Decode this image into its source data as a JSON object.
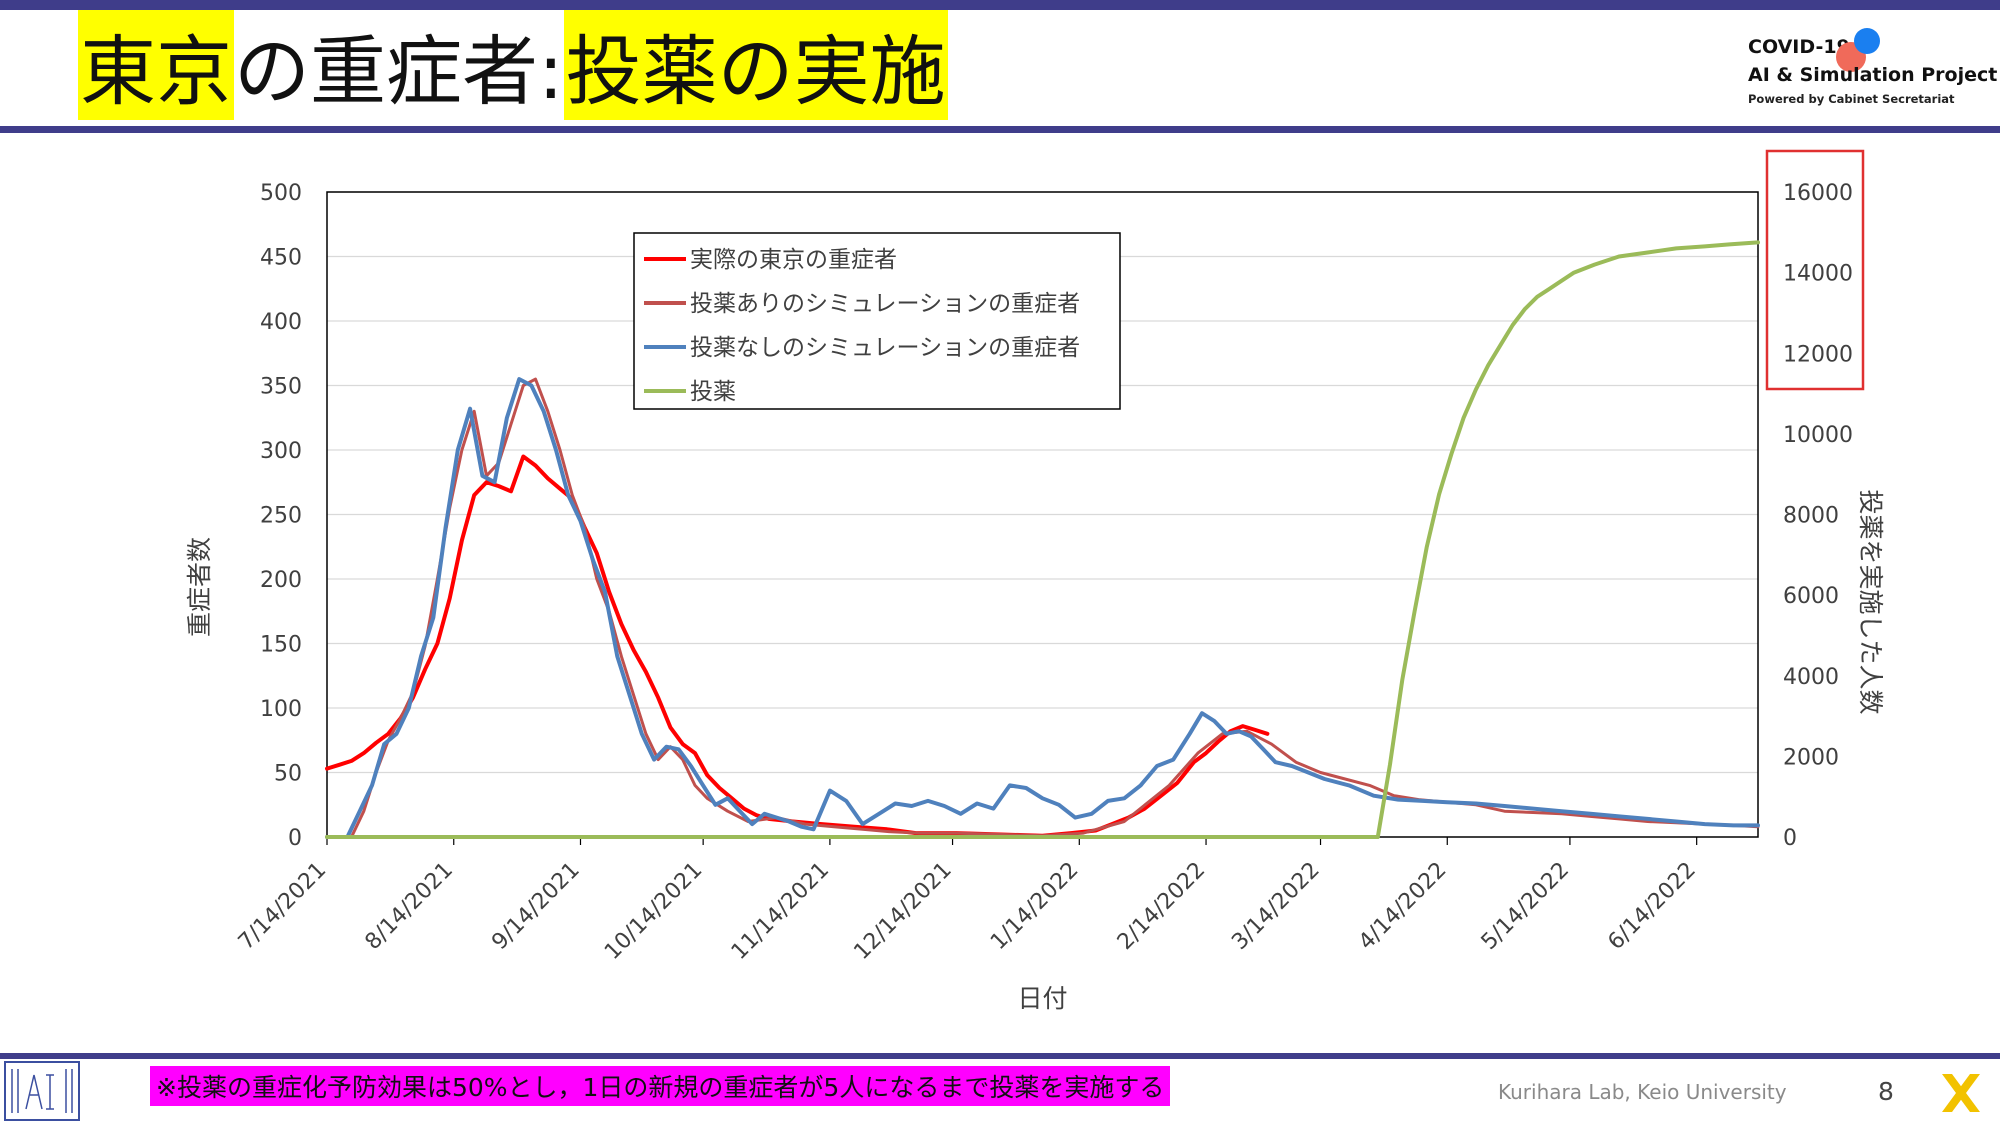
{
  "slide": {
    "title_part1": "東京",
    "title_part2": "の重症者:",
    "title_part3": "投薬の実施",
    "logo_line1": "COVID-19",
    "logo_line2": "AI & Simulation Project",
    "logo_line3": "Powered by Cabinet Secretariat",
    "footnote": "※投薬の重症化予防効果は50%とし，1日の新規の重症者が5人になるまで投薬を実施する",
    "credit": "Kurihara Lab, Keio University",
    "page_number": "8"
  },
  "colors": {
    "title_highlight": "#ffff00",
    "footnote_highlight": "#ff00ff",
    "accent_bar": "#3f3d8a",
    "actual": "#ff0000",
    "sim_with_drug": "#c0504d",
    "sim_without_drug": "#4f81bd",
    "drug": "#9bbb59",
    "highlight_box": "#e03030"
  },
  "chart_data": {
    "type": "line",
    "xlabel": "日付",
    "ylabel": "重症者数",
    "y2label": "投薬を実施した人数",
    "ylim": [
      0,
      500
    ],
    "y2lim": [
      0,
      16000
    ],
    "xlim": [
      "2021-07-14",
      "2022-06-29"
    ],
    "yticks": [
      0,
      50,
      100,
      150,
      200,
      250,
      300,
      350,
      400,
      450,
      500
    ],
    "y2ticks": [
      0,
      2000,
      4000,
      6000,
      8000,
      10000,
      12000,
      14000,
      16000
    ],
    "xtick_labels": [
      "7/14/2021",
      "8/14/2021",
      "9/14/2021",
      "10/14/2021",
      "11/14/2021",
      "12/14/2021",
      "1/14/2022",
      "2/14/2022",
      "3/14/2022",
      "4/14/2022",
      "5/14/2022",
      "6/14/2022"
    ],
    "xtick_dates": [
      "2021-07-14",
      "2021-08-14",
      "2021-09-14",
      "2021-10-14",
      "2021-11-14",
      "2021-12-14",
      "2022-01-14",
      "2022-02-14",
      "2022-03-14",
      "2022-04-14",
      "2022-05-14",
      "2022-06-14"
    ],
    "grid": "horizontal",
    "legend_position": "top-center",
    "highlight": "right axis (12000–16000) outlined with a red box",
    "series": [
      {
        "name": "実際の東京の重症者",
        "axis": "left",
        "color": "#ff0000",
        "points": [
          [
            "2021-07-14",
            53
          ],
          [
            "2021-07-17",
            56
          ],
          [
            "2021-07-20",
            59
          ],
          [
            "2021-07-23",
            65
          ],
          [
            "2021-07-26",
            73
          ],
          [
            "2021-07-29",
            80
          ],
          [
            "2021-08-01",
            92
          ],
          [
            "2021-08-04",
            108
          ],
          [
            "2021-08-07",
            130
          ],
          [
            "2021-08-10",
            150
          ],
          [
            "2021-08-13",
            185
          ],
          [
            "2021-08-16",
            230
          ],
          [
            "2021-08-19",
            265
          ],
          [
            "2021-08-22",
            275
          ],
          [
            "2021-08-25",
            272
          ],
          [
            "2021-08-28",
            268
          ],
          [
            "2021-08-31",
            295
          ],
          [
            "2021-09-03",
            288
          ],
          [
            "2021-09-06",
            278
          ],
          [
            "2021-09-09",
            270
          ],
          [
            "2021-09-12",
            262
          ],
          [
            "2021-09-15",
            240
          ],
          [
            "2021-09-18",
            220
          ],
          [
            "2021-09-21",
            190
          ],
          [
            "2021-09-24",
            165
          ],
          [
            "2021-09-27",
            145
          ],
          [
            "2021-09-30",
            128
          ],
          [
            "2021-10-03",
            108
          ],
          [
            "2021-10-06",
            85
          ],
          [
            "2021-10-09",
            72
          ],
          [
            "2021-10-12",
            65
          ],
          [
            "2021-10-15",
            48
          ],
          [
            "2021-10-18",
            38
          ],
          [
            "2021-10-21",
            30
          ],
          [
            "2021-10-24",
            22
          ],
          [
            "2021-10-27",
            17
          ],
          [
            "2021-10-30",
            14
          ],
          [
            "2021-11-05",
            12
          ],
          [
            "2021-11-12",
            10
          ],
          [
            "2021-11-20",
            8
          ],
          [
            "2021-11-28",
            6
          ],
          [
            "2021-12-05",
            3
          ],
          [
            "2021-12-15",
            3
          ],
          [
            "2021-12-25",
            2
          ],
          [
            "2022-01-05",
            1
          ],
          [
            "2022-01-12",
            3
          ],
          [
            "2022-01-18",
            5
          ],
          [
            "2022-01-22",
            10
          ],
          [
            "2022-01-26",
            15
          ],
          [
            "2022-01-30",
            22
          ],
          [
            "2022-02-03",
            32
          ],
          [
            "2022-02-07",
            42
          ],
          [
            "2022-02-11",
            58
          ],
          [
            "2022-02-14",
            65
          ],
          [
            "2022-02-17",
            74
          ],
          [
            "2022-02-20",
            82
          ],
          [
            "2022-02-23",
            86
          ],
          [
            "2022-02-26",
            83
          ],
          [
            "2022-03-01",
            80
          ]
        ]
      },
      {
        "name": "投薬ありのシミュレーションの重症者",
        "axis": "left",
        "color": "#c0504d",
        "points": [
          [
            "2021-07-20",
            0
          ],
          [
            "2021-07-23",
            20
          ],
          [
            "2021-07-26",
            50
          ],
          [
            "2021-07-29",
            75
          ],
          [
            "2021-08-01",
            92
          ],
          [
            "2021-08-04",
            112
          ],
          [
            "2021-08-07",
            148
          ],
          [
            "2021-08-10",
            200
          ],
          [
            "2021-08-13",
            255
          ],
          [
            "2021-08-16",
            300
          ],
          [
            "2021-08-19",
            330
          ],
          [
            "2021-08-22",
            280
          ],
          [
            "2021-08-25",
            290
          ],
          [
            "2021-08-28",
            320
          ],
          [
            "2021-08-31",
            350
          ],
          [
            "2021-09-03",
            355
          ],
          [
            "2021-09-06",
            330
          ],
          [
            "2021-09-09",
            300
          ],
          [
            "2021-09-12",
            265
          ],
          [
            "2021-09-15",
            240
          ],
          [
            "2021-09-18",
            200
          ],
          [
            "2021-09-21",
            175
          ],
          [
            "2021-09-24",
            140
          ],
          [
            "2021-09-27",
            110
          ],
          [
            "2021-09-30",
            80
          ],
          [
            "2021-10-03",
            60
          ],
          [
            "2021-10-06",
            70
          ],
          [
            "2021-10-09",
            60
          ],
          [
            "2021-10-12",
            40
          ],
          [
            "2021-10-15",
            30
          ],
          [
            "2021-10-20",
            20
          ],
          [
            "2021-10-25",
            12
          ],
          [
            "2021-11-01",
            15
          ],
          [
            "2021-11-08",
            10
          ],
          [
            "2021-11-15",
            8
          ],
          [
            "2021-11-22",
            6
          ],
          [
            "2021-11-29",
            4
          ],
          [
            "2021-12-06",
            3
          ],
          [
            "2021-12-15",
            3
          ],
          [
            "2021-12-25",
            2
          ],
          [
            "2022-01-05",
            1
          ],
          [
            "2022-01-15",
            3
          ],
          [
            "2022-01-25",
            12
          ],
          [
            "2022-02-05",
            40
          ],
          [
            "2022-02-12",
            65
          ],
          [
            "2022-02-18",
            80
          ],
          [
            "2022-02-24",
            82
          ],
          [
            "2022-03-02",
            72
          ],
          [
            "2022-03-08",
            58
          ],
          [
            "2022-03-14",
            50
          ],
          [
            "2022-03-20",
            45
          ],
          [
            "2022-03-26",
            40
          ],
          [
            "2022-04-01",
            32
          ],
          [
            "2022-04-07",
            29
          ],
          [
            "2022-04-14",
            27
          ],
          [
            "2022-04-21",
            25
          ],
          [
            "2022-04-28",
            20
          ],
          [
            "2022-05-05",
            19
          ],
          [
            "2022-05-12",
            18
          ],
          [
            "2022-05-19",
            16
          ],
          [
            "2022-05-26",
            14
          ],
          [
            "2022-06-02",
            12
          ],
          [
            "2022-06-09",
            11
          ],
          [
            "2022-06-16",
            10
          ],
          [
            "2022-06-23",
            9
          ],
          [
            "2022-06-29",
            8
          ]
        ]
      },
      {
        "name": "投薬なしのシミュレーションの重症者",
        "axis": "left",
        "color": "#4f81bd",
        "points": [
          [
            "2021-07-14",
            0
          ],
          [
            "2021-07-19",
            0
          ],
          [
            "2021-07-22",
            20
          ],
          [
            "2021-07-25",
            40
          ],
          [
            "2021-07-28",
            72
          ],
          [
            "2021-07-31",
            80
          ],
          [
            "2021-08-03",
            100
          ],
          [
            "2021-08-06",
            140
          ],
          [
            "2021-08-09",
            170
          ],
          [
            "2021-08-12",
            240
          ],
          [
            "2021-08-15",
            300
          ],
          [
            "2021-08-18",
            332
          ],
          [
            "2021-08-21",
            280
          ],
          [
            "2021-08-24",
            275
          ],
          [
            "2021-08-27",
            325
          ],
          [
            "2021-08-30",
            355
          ],
          [
            "2021-09-02",
            350
          ],
          [
            "2021-09-05",
            330
          ],
          [
            "2021-09-08",
            300
          ],
          [
            "2021-09-11",
            265
          ],
          [
            "2021-09-14",
            245
          ],
          [
            "2021-09-17",
            215
          ],
          [
            "2021-09-20",
            190
          ],
          [
            "2021-09-23",
            140
          ],
          [
            "2021-09-26",
            110
          ],
          [
            "2021-09-29",
            80
          ],
          [
            "2021-10-02",
            60
          ],
          [
            "2021-10-05",
            70
          ],
          [
            "2021-10-08",
            68
          ],
          [
            "2021-10-11",
            55
          ],
          [
            "2021-10-14",
            40
          ],
          [
            "2021-10-17",
            25
          ],
          [
            "2021-10-20",
            30
          ],
          [
            "2021-10-23",
            20
          ],
          [
            "2021-10-26",
            10
          ],
          [
            "2021-10-29",
            18
          ],
          [
            "2021-11-01",
            15
          ],
          [
            "2021-11-04",
            12
          ],
          [
            "2021-11-07",
            8
          ],
          [
            "2021-11-10",
            6
          ],
          [
            "2021-11-14",
            36
          ],
          [
            "2021-11-18",
            28
          ],
          [
            "2021-11-22",
            10
          ],
          [
            "2021-11-26",
            18
          ],
          [
            "2021-11-30",
            26
          ],
          [
            "2021-12-04",
            24
          ],
          [
            "2021-12-08",
            28
          ],
          [
            "2021-12-12",
            24
          ],
          [
            "2021-12-16",
            18
          ],
          [
            "2021-12-20",
            26
          ],
          [
            "2021-12-24",
            22
          ],
          [
            "2021-12-28",
            40
          ],
          [
            "2022-01-01",
            38
          ],
          [
            "2022-01-05",
            30
          ],
          [
            "2022-01-09",
            25
          ],
          [
            "2022-01-13",
            15
          ],
          [
            "2022-01-17",
            18
          ],
          [
            "2022-01-21",
            28
          ],
          [
            "2022-01-25",
            30
          ],
          [
            "2022-01-29",
            40
          ],
          [
            "2022-02-02",
            55
          ],
          [
            "2022-02-06",
            60
          ],
          [
            "2022-02-10",
            80
          ],
          [
            "2022-02-13",
            96
          ],
          [
            "2022-02-16",
            90
          ],
          [
            "2022-02-19",
            80
          ],
          [
            "2022-02-22",
            82
          ],
          [
            "2022-02-25",
            78
          ],
          [
            "2022-02-28",
            68
          ],
          [
            "2022-03-03",
            58
          ],
          [
            "2022-03-07",
            55
          ],
          [
            "2022-03-11",
            50
          ],
          [
            "2022-03-15",
            45
          ],
          [
            "2022-03-21",
            40
          ],
          [
            "2022-03-27",
            32
          ],
          [
            "2022-04-02",
            29
          ],
          [
            "2022-04-08",
            28
          ],
          [
            "2022-04-14",
            27
          ],
          [
            "2022-04-21",
            26
          ],
          [
            "2022-04-28",
            24
          ],
          [
            "2022-05-05",
            22
          ],
          [
            "2022-05-12",
            20
          ],
          [
            "2022-05-19",
            18
          ],
          [
            "2022-05-26",
            16
          ],
          [
            "2022-06-02",
            14
          ],
          [
            "2022-06-09",
            12
          ],
          [
            "2022-06-16",
            10
          ],
          [
            "2022-06-23",
            9
          ],
          [
            "2022-06-29",
            9
          ]
        ]
      },
      {
        "name": "投薬",
        "axis": "right",
        "color": "#9bbb59",
        "points": [
          [
            "2021-07-14",
            0
          ],
          [
            "2022-03-28",
            0
          ],
          [
            "2022-03-31",
            1800
          ],
          [
            "2022-04-03",
            3900
          ],
          [
            "2022-04-06",
            5600
          ],
          [
            "2022-04-09",
            7200
          ],
          [
            "2022-04-12",
            8500
          ],
          [
            "2022-04-15",
            9500
          ],
          [
            "2022-04-18",
            10400
          ],
          [
            "2022-04-21",
            11100
          ],
          [
            "2022-04-24",
            11700
          ],
          [
            "2022-04-27",
            12200
          ],
          [
            "2022-04-30",
            12700
          ],
          [
            "2022-05-03",
            13100
          ],
          [
            "2022-05-06",
            13400
          ],
          [
            "2022-05-09",
            13600
          ],
          [
            "2022-05-12",
            13800
          ],
          [
            "2022-05-15",
            14000
          ],
          [
            "2022-05-20",
            14200
          ],
          [
            "2022-05-26",
            14400
          ],
          [
            "2022-06-02",
            14500
          ],
          [
            "2022-06-09",
            14600
          ],
          [
            "2022-06-16",
            14650
          ],
          [
            "2022-06-22",
            14700
          ],
          [
            "2022-06-29",
            14750
          ]
        ]
      }
    ]
  }
}
